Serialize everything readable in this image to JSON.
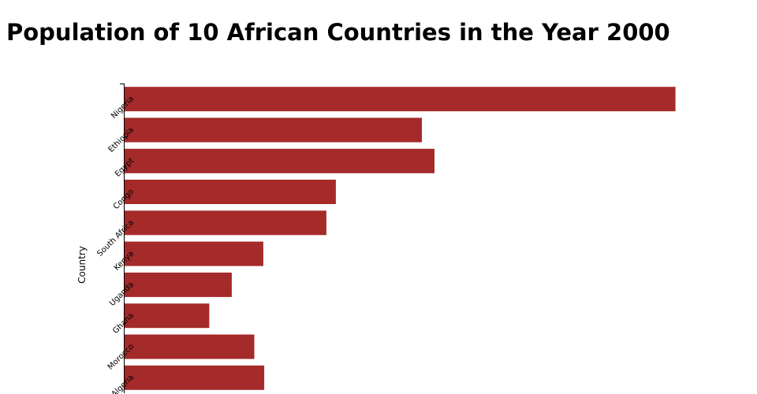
{
  "chart_data": {
    "type": "bar",
    "orientation": "horizontal",
    "title": "Population of 10 African Countries in the Year 2000",
    "xlabel": "",
    "ylabel": "Country",
    "categories": [
      "Nigeria",
      "Ethiopia",
      "Egypt",
      "Congo",
      "South Africa",
      "Kenya",
      "Uganda",
      "Ghana",
      "Morocco",
      "Algeria"
    ],
    "values": [
      122.3,
      66.0,
      68.8,
      46.9,
      44.8,
      30.8,
      23.8,
      18.8,
      28.8,
      31.0
    ],
    "xlim": [
      0,
      125
    ],
    "bar_color": "#a52a2a",
    "grid": false
  }
}
